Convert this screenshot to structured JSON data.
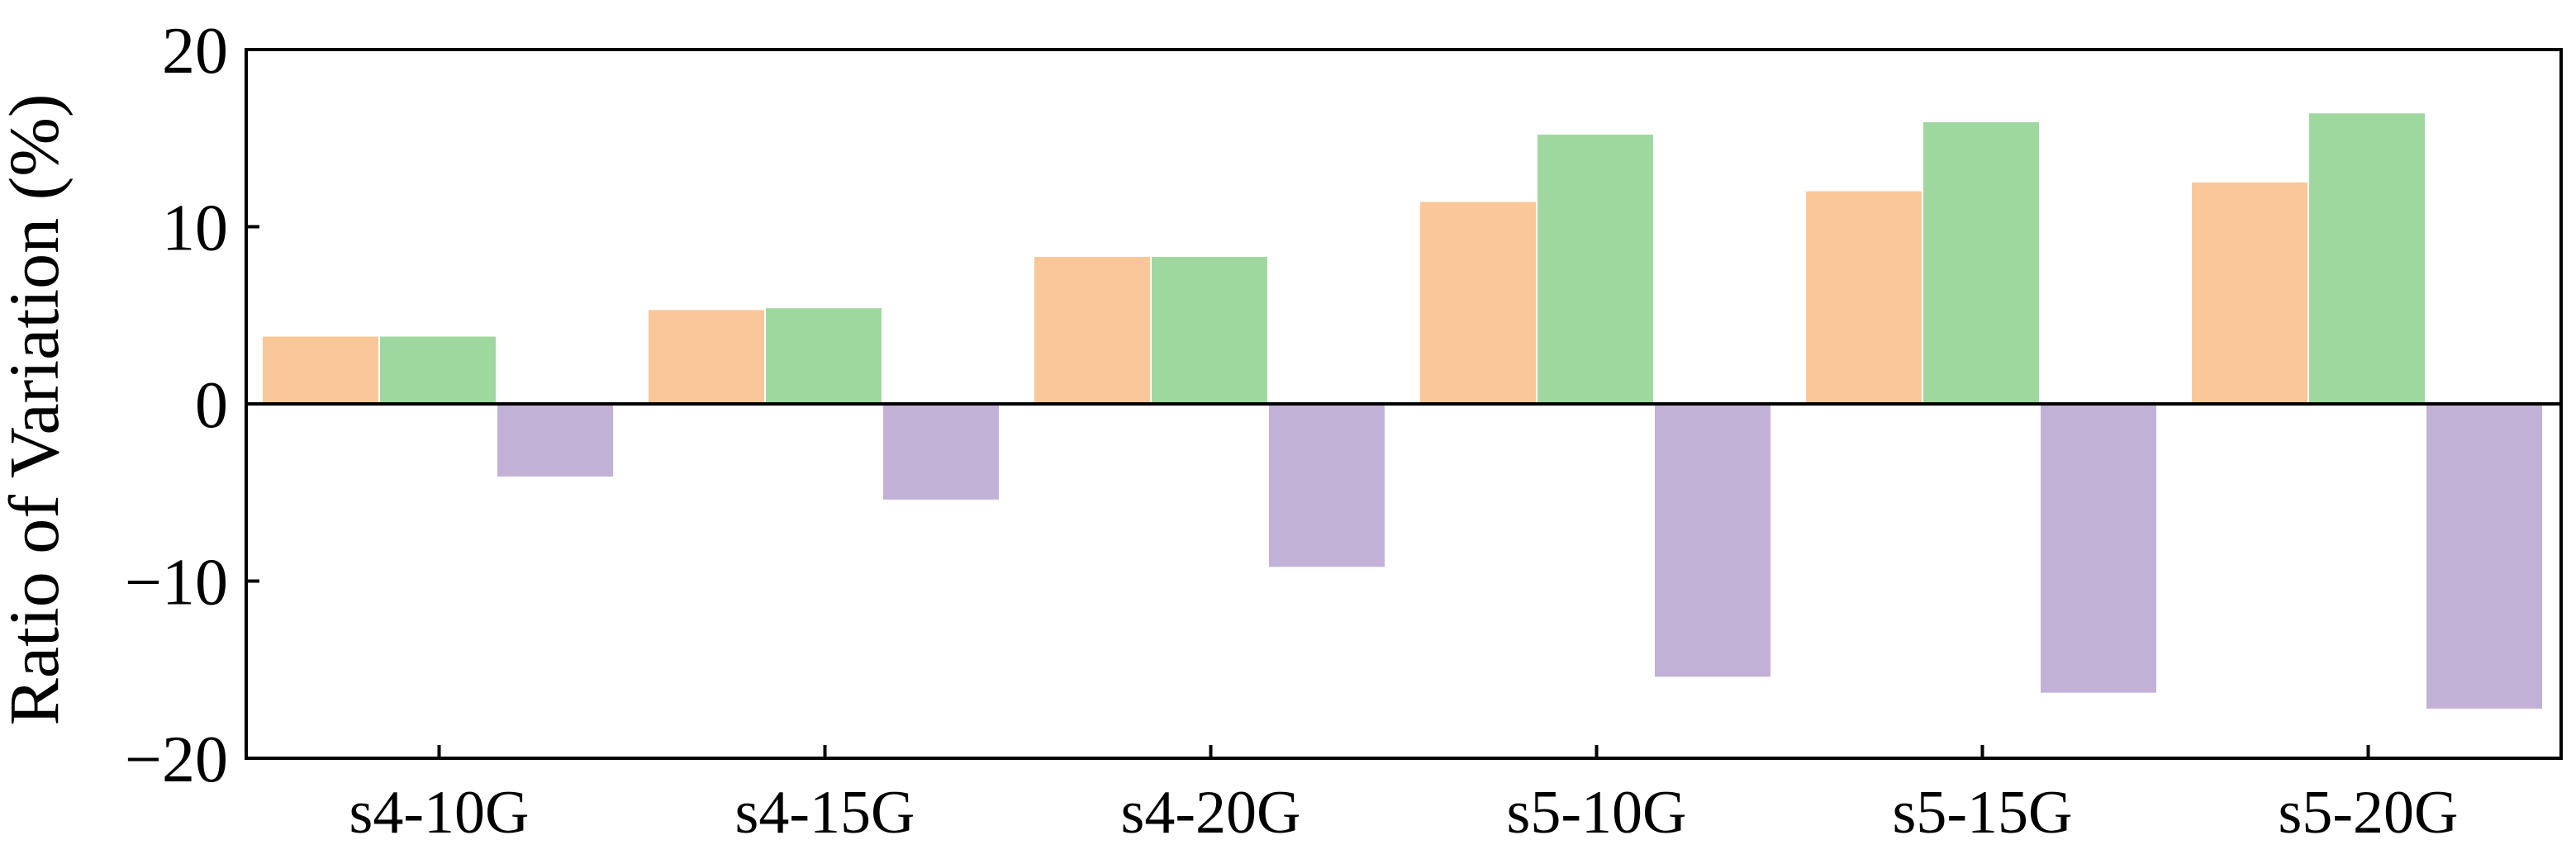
{
  "chart_data": {
    "type": "bar",
    "title": "",
    "xlabel": "",
    "ylabel": "Ratio of Variation (%)",
    "ylim": [
      -20,
      20
    ],
    "yticks": [
      20,
      10,
      0,
      -10,
      -20
    ],
    "ytick_labels": [
      "20",
      "10",
      "0",
      "−10",
      "−20"
    ],
    "categories": [
      "s4-10G",
      "s4-15G",
      "s4-20G",
      "s5-10G",
      "s5-15G",
      "s5-20G"
    ],
    "series": [
      {
        "color": "#FAC898",
        "values": [
          3.8,
          5.3,
          8.3,
          11.4,
          12.0,
          12.5
        ]
      },
      {
        "color": "#9FD89E",
        "values": [
          3.8,
          5.4,
          8.3,
          15.2,
          15.9,
          16.4
        ]
      },
      {
        "color": "#C2B1D7",
        "values": [
          -4.1,
          -5.4,
          -9.2,
          -15.4,
          -16.3,
          -17.2
        ]
      }
    ],
    "zero_line": true,
    "grid": false,
    "legend": "none"
  }
}
